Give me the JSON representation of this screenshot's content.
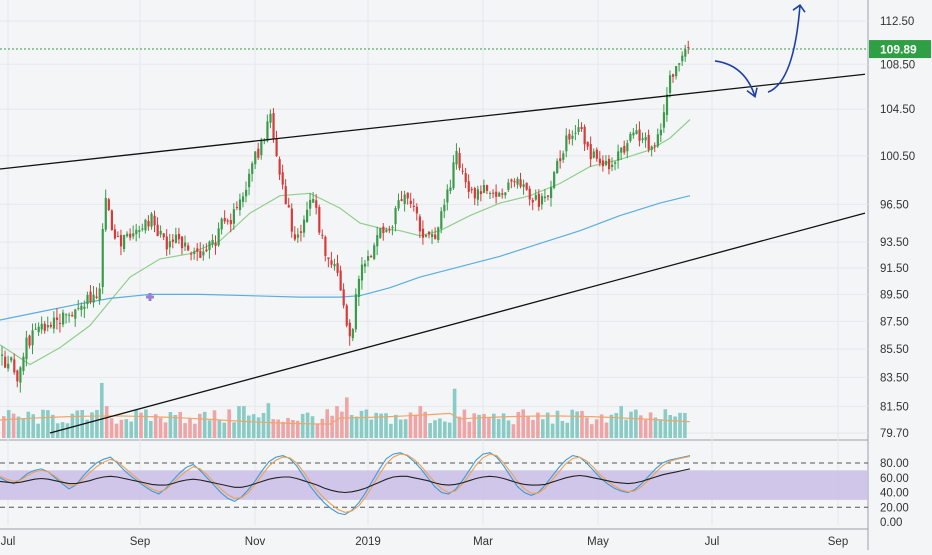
{
  "colors": {
    "background": "#f4f5f7",
    "up_candle": "#3a9b4a",
    "down_candle": "#d83a3a",
    "volume_up": "#7dc6bf",
    "volume_down": "#ee9b9b",
    "ma_short": "#8fcf8a",
    "ma_long": "#5aaee0",
    "volume_ma": "#f0a56a",
    "trendline": "#111111",
    "price_line": "#2ea043",
    "arrow": "#1d3fa6",
    "rsi_band": "#c9bde6",
    "osc_fast": "#3a9bd8",
    "osc_slow": "#f0a050",
    "osc_main": "#222222",
    "axis_text": "#333333",
    "grid": "#e6e8ec"
  },
  "chart_data": [
    {
      "type": "candlestick",
      "title": "",
      "price_axis": {
        "ticks": [
          "112.50",
          "108.50",
          "104.50",
          "100.50",
          "96.50",
          "93.50",
          "91.50",
          "89.50",
          "87.50",
          "85.50",
          "83.50",
          "81.50",
          "79.70"
        ],
        "range": [
          79.7,
          112.5
        ],
        "scale": "log"
      },
      "time_axis": {
        "ticks": [
          "Jul",
          "Sep",
          "Nov",
          "2019",
          "Mar",
          "May",
          "Jul",
          "Sep"
        ]
      },
      "last_price": {
        "label": "109.89",
        "value": 109.89
      },
      "ohlc_path": [
        [
          0,
          85.0
        ],
        [
          5,
          84.2
        ],
        [
          10,
          84.8
        ],
        [
          15,
          83.0
        ],
        [
          20,
          84.8
        ],
        [
          25,
          85.8
        ],
        [
          30,
          86.2
        ],
        [
          35,
          86.6
        ],
        [
          40,
          87.0
        ],
        [
          45,
          87.1
        ],
        [
          50,
          87.2
        ],
        [
          55,
          87.6
        ],
        [
          60,
          87.5
        ],
        [
          65,
          87.9
        ],
        [
          70,
          88.2
        ],
        [
          75,
          88.6
        ],
        [
          80,
          88.7
        ],
        [
          85,
          89.0
        ],
        [
          90,
          89.3
        ],
        [
          95,
          89.6
        ],
        [
          100,
          89.9
        ],
        [
          103,
          98.2
        ],
        [
          105,
          97.0
        ],
        [
          108,
          95.6
        ],
        [
          110,
          95.0
        ],
        [
          112,
          94.4
        ],
        [
          116,
          94.0
        ],
        [
          120,
          93.6
        ],
        [
          125,
          94.2
        ],
        [
          130,
          94.4
        ],
        [
          135,
          94.8
        ],
        [
          140,
          94.6
        ],
        [
          145,
          95.0
        ],
        [
          150,
          95.4
        ],
        [
          155,
          94.4
        ],
        [
          160,
          94.0
        ],
        [
          165,
          93.4
        ],
        [
          170,
          93.8
        ],
        [
          175,
          94.4
        ],
        [
          180,
          93.6
        ],
        [
          185,
          93.2
        ],
        [
          190,
          93.0
        ],
        [
          195,
          93.0
        ],
        [
          200,
          92.6
        ],
        [
          205,
          93.2
        ],
        [
          210,
          94.4
        ],
        [
          215,
          93.6
        ],
        [
          220,
          95.0
        ],
        [
          225,
          95.6
        ],
        [
          230,
          95.0
        ],
        [
          235,
          96.2
        ],
        [
          240,
          97.0
        ],
        [
          245,
          97.6
        ],
        [
          250,
          99.0
        ],
        [
          255,
          100.6
        ],
        [
          260,
          101.2
        ],
        [
          265,
          102.4
        ],
        [
          268,
          104.4
        ],
        [
          270,
          103.2
        ],
        [
          273,
          101.0
        ],
        [
          276,
          100.4
        ],
        [
          280,
          98.8
        ],
        [
          283,
          97.6
        ],
        [
          286,
          96.6
        ],
        [
          290,
          95.0
        ],
        [
          295,
          93.6
        ],
        [
          300,
          94.0
        ],
        [
          305,
          95.6
        ],
        [
          308,
          96.4
        ],
        [
          312,
          96.8
        ],
        [
          316,
          95.4
        ],
        [
          320,
          94.0
        ],
        [
          325,
          92.8
        ],
        [
          330,
          92.0
        ],
        [
          335,
          91.4
        ],
        [
          340,
          89.6
        ],
        [
          343,
          88.4
        ],
        [
          346,
          87.2
        ],
        [
          349,
          86.0
        ],
        [
          352,
          87.6
        ],
        [
          355,
          90.2
        ],
        [
          360,
          91.4
        ],
        [
          365,
          92.0
        ],
        [
          370,
          92.8
        ],
        [
          375,
          93.6
        ],
        [
          380,
          94.2
        ],
        [
          385,
          94.0
        ],
        [
          390,
          94.8
        ],
        [
          395,
          95.8
        ],
        [
          400,
          97.0
        ],
        [
          405,
          97.8
        ],
        [
          410,
          96.8
        ],
        [
          415,
          95.6
        ],
        [
          420,
          94.4
        ],
        [
          425,
          93.6
        ],
        [
          430,
          93.8
        ],
        [
          435,
          94.2
        ],
        [
          440,
          95.4
        ],
        [
          445,
          97.0
        ],
        [
          450,
          98.0
        ],
        [
          455,
          101.6
        ],
        [
          458,
          99.4
        ],
        [
          462,
          98.6
        ],
        [
          466,
          98.0
        ],
        [
          470,
          97.6
        ],
        [
          475,
          97.2
        ],
        [
          480,
          97.8
        ],
        [
          485,
          97.4
        ],
        [
          490,
          97.2
        ],
        [
          495,
          97.4
        ],
        [
          500,
          97.6
        ],
        [
          505,
          98.0
        ],
        [
          510,
          98.4
        ],
        [
          515,
          98.2
        ],
        [
          520,
          97.8
        ],
        [
          525,
          97.4
        ],
        [
          530,
          97.0
        ],
        [
          535,
          96.8
        ],
        [
          540,
          96.6
        ],
        [
          545,
          97.2
        ],
        [
          550,
          97.8
        ],
        [
          555,
          99.6
        ],
        [
          560,
          100.4
        ],
        [
          565,
          101.8
        ],
        [
          570,
          102.4
        ],
        [
          575,
          102.8
        ],
        [
          580,
          102.6
        ],
        [
          585,
          101.4
        ],
        [
          590,
          100.6
        ],
        [
          595,
          100.4
        ],
        [
          600,
          100.2
        ],
        [
          605,
          100.0
        ],
        [
          610,
          99.8
        ],
        [
          615,
          100.2
        ],
        [
          620,
          100.8
        ],
        [
          625,
          101.4
        ],
        [
          630,
          102.0
        ],
        [
          635,
          102.6
        ],
        [
          640,
          102.0
        ],
        [
          645,
          101.6
        ],
        [
          650,
          101.4
        ],
        [
          655,
          101.8
        ],
        [
          660,
          103.0
        ],
        [
          665,
          105.6
        ],
        [
          670,
          107.4
        ],
        [
          675,
          108.4
        ],
        [
          680,
          108.8
        ],
        [
          685,
          109.4
        ],
        [
          690,
          109.89
        ]
      ],
      "ma_short": [
        [
          0,
          85.8
        ],
        [
          30,
          84.4
        ],
        [
          60,
          85.6
        ],
        [
          90,
          87.2
        ],
        [
          110,
          89.0
        ],
        [
          130,
          90.8
        ],
        [
          160,
          92.2
        ],
        [
          190,
          92.6
        ],
        [
          220,
          93.6
        ],
        [
          250,
          95.8
        ],
        [
          280,
          97.2
        ],
        [
          310,
          97.4
        ],
        [
          340,
          96.2
        ],
        [
          360,
          95.0
        ],
        [
          380,
          94.6
        ],
        [
          400,
          94.4
        ],
        [
          420,
          94.0
        ],
        [
          440,
          94.4
        ],
        [
          470,
          95.6
        ],
        [
          500,
          96.6
        ],
        [
          530,
          97.2
        ],
        [
          560,
          98.2
        ],
        [
          590,
          99.6
        ],
        [
          620,
          100.2
        ],
        [
          650,
          101.0
        ],
        [
          670,
          102.0
        ],
        [
          690,
          103.6
        ]
      ],
      "ma_long": [
        [
          0,
          87.6
        ],
        [
          40,
          88.2
        ],
        [
          80,
          88.8
        ],
        [
          110,
          89.2
        ],
        [
          150,
          89.5
        ],
        [
          200,
          89.5
        ],
        [
          250,
          89.4
        ],
        [
          300,
          89.3
        ],
        [
          340,
          89.3
        ],
        [
          360,
          89.4
        ],
        [
          390,
          90.0
        ],
        [
          420,
          90.8
        ],
        [
          460,
          91.6
        ],
        [
          500,
          92.4
        ],
        [
          540,
          93.4
        ],
        [
          580,
          94.4
        ],
        [
          620,
          95.6
        ],
        [
          660,
          96.6
        ],
        [
          690,
          97.2
        ]
      ],
      "trendlines": [
        {
          "name": "upper",
          "points": [
            [
              0,
              99.4
            ],
            [
              865,
              107.6
            ]
          ]
        },
        {
          "name": "lower",
          "points": [
            [
              50,
              79.7
            ],
            [
              865,
              95.8
            ]
          ]
        }
      ],
      "forecast_arrows": [
        {
          "name": "pullback",
          "points": [
            [
              715,
              108.8
            ],
            [
              755,
              105.6
            ]
          ]
        },
        {
          "name": "breakout",
          "points": [
            [
              768,
              106.0
            ],
            [
              800,
              114.0
            ]
          ]
        }
      ],
      "volume": {
        "bars": 140,
        "spikes": [
          [
            100,
            0.95
          ],
          [
            103,
            0.55
          ],
          [
            180,
            0.45
          ],
          [
            240,
            0.55
          ],
          [
            268,
            0.6
          ],
          [
            335,
            0.55
          ],
          [
            345,
            0.7
          ],
          [
            420,
            0.55
          ],
          [
            452,
            0.85
          ],
          [
            620,
            0.55
          ]
        ]
      }
    },
    {
      "type": "line",
      "title": "",
      "y_axis": {
        "ticks": [
          "80.00",
          "60.00",
          "40.00",
          "20.00",
          "0.00"
        ],
        "range": [
          0,
          100
        ]
      },
      "band": [
        30,
        70
      ],
      "dashed_levels": [
        80,
        20
      ],
      "series": [
        {
          "key": "fast",
          "values": [
            60,
            55,
            52,
            58,
            66,
            70,
            72,
            68,
            60,
            52,
            45,
            50,
            62,
            72,
            80,
            85,
            88,
            80,
            70,
            62,
            55,
            48,
            42,
            38,
            45,
            56,
            66,
            74,
            78,
            70,
            60,
            50,
            40,
            32,
            28,
            34,
            44,
            56,
            70,
            82,
            88,
            90,
            86,
            76,
            62,
            48,
            36,
            26,
            18,
            12,
            10,
            16,
            26,
            40,
            56,
            72,
            86,
            92,
            94,
            90,
            82,
            72,
            60,
            48,
            40,
            38,
            44,
            56,
            70,
            84,
            92,
            94,
            88,
            76,
            62,
            48,
            40,
            36,
            40,
            50,
            62,
            74,
            84,
            90,
            88,
            80,
            70,
            60,
            52,
            46,
            42,
            40,
            44,
            52,
            62,
            72,
            80,
            84,
            86,
            88,
            90
          ]
        },
        {
          "key": "slow",
          "values": [
            62,
            58,
            55,
            57,
            63,
            68,
            70,
            68,
            62,
            55,
            49,
            50,
            58,
            67,
            75,
            81,
            85,
            82,
            74,
            66,
            58,
            51,
            45,
            41,
            44,
            52,
            61,
            69,
            75,
            72,
            64,
            54,
            45,
            37,
            32,
            33,
            40,
            51,
            64,
            76,
            84,
            88,
            87,
            80,
            68,
            54,
            42,
            32,
            24,
            17,
            13,
            15,
            22,
            34,
            49,
            65,
            79,
            88,
            92,
            91,
            85,
            76,
            65,
            54,
            45,
            40,
            42,
            51,
            64,
            77,
            87,
            92,
            90,
            80,
            68,
            55,
            45,
            39,
            39,
            46,
            57,
            68,
            79,
            86,
            88,
            83,
            74,
            64,
            56,
            49,
            44,
            41,
            42,
            48,
            57,
            67,
            76,
            82,
            85,
            87,
            89
          ]
        },
        {
          "key": "main",
          "values": [
            55,
            54,
            53,
            54,
            56,
            58,
            59,
            58,
            56,
            54,
            52,
            52,
            54,
            56,
            59,
            61,
            62,
            61,
            59,
            57,
            55,
            53,
            51,
            50,
            50,
            52,
            55,
            57,
            58,
            57,
            55,
            53,
            51,
            49,
            47,
            47,
            49,
            52,
            55,
            58,
            60,
            61,
            61,
            59,
            56,
            53,
            50,
            46,
            43,
            41,
            40,
            41,
            43,
            46,
            50,
            54,
            58,
            61,
            62,
            62,
            60,
            58,
            56,
            53,
            51,
            50,
            51,
            53,
            56,
            59,
            61,
            62,
            61,
            59,
            56,
            53,
            51,
            50,
            50,
            51,
            54,
            57,
            60,
            62,
            63,
            62,
            60,
            58,
            56,
            54,
            53,
            52,
            53,
            55,
            58,
            61,
            64,
            66,
            68,
            70,
            72
          ]
        }
      ]
    }
  ]
}
